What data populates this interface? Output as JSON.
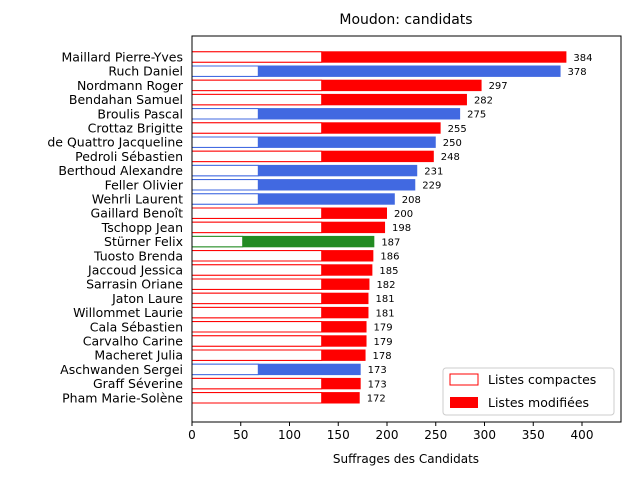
{
  "chart_data": {
    "type": "bar",
    "orientation": "horizontal",
    "title": "Moudon: candidats",
    "xlabel": "Suffrages des Candidats",
    "ylabel": "",
    "xlim": [
      0,
      440
    ],
    "xticks": [
      0,
      50,
      100,
      150,
      200,
      250,
      300,
      350,
      400
    ],
    "grid": false,
    "legend": {
      "placement": "lower-right",
      "entries": [
        {
          "label": "Listes compactes",
          "style": "outlined"
        },
        {
          "label": "Listes modifiées",
          "style": "filled"
        }
      ]
    },
    "colors": {
      "red": "#ff0000",
      "blue": "#4169e1",
      "green": "#228b22"
    },
    "candidates": [
      {
        "name": "Maillard Pierre-Yves",
        "total": 384,
        "compact": 133,
        "color": "red"
      },
      {
        "name": "Ruch Daniel",
        "total": 378,
        "compact": 68,
        "color": "blue"
      },
      {
        "name": "Nordmann Roger",
        "total": 297,
        "compact": 133,
        "color": "red"
      },
      {
        "name": "Bendahan Samuel",
        "total": 282,
        "compact": 133,
        "color": "red"
      },
      {
        "name": "Broulis Pascal",
        "total": 275,
        "compact": 68,
        "color": "blue"
      },
      {
        "name": "Crottaz Brigitte",
        "total": 255,
        "compact": 133,
        "color": "red"
      },
      {
        "name": "de Quattro Jacqueline",
        "total": 250,
        "compact": 68,
        "color": "blue"
      },
      {
        "name": "Pedroli Sébastien",
        "total": 248,
        "compact": 133,
        "color": "red"
      },
      {
        "name": "Berthoud Alexandre",
        "total": 231,
        "compact": 68,
        "color": "blue"
      },
      {
        "name": "Feller Olivier",
        "total": 229,
        "compact": 68,
        "color": "blue"
      },
      {
        "name": "Wehrli Laurent",
        "total": 208,
        "compact": 68,
        "color": "blue"
      },
      {
        "name": "Gaillard Benoît",
        "total": 200,
        "compact": 133,
        "color": "red"
      },
      {
        "name": "Tschopp Jean",
        "total": 198,
        "compact": 133,
        "color": "red"
      },
      {
        "name": "Stürner Felix",
        "total": 187,
        "compact": 52,
        "color": "green"
      },
      {
        "name": "Tuosto Brenda",
        "total": 186,
        "compact": 133,
        "color": "red"
      },
      {
        "name": "Jaccoud Jessica",
        "total": 185,
        "compact": 133,
        "color": "red"
      },
      {
        "name": "Sarrasin Oriane",
        "total": 182,
        "compact": 133,
        "color": "red"
      },
      {
        "name": "Jaton Laure",
        "total": 181,
        "compact": 133,
        "color": "red"
      },
      {
        "name": "Willommet Laurie",
        "total": 181,
        "compact": 133,
        "color": "red"
      },
      {
        "name": "Cala Sébastien",
        "total": 179,
        "compact": 133,
        "color": "red"
      },
      {
        "name": "Carvalho Carine",
        "total": 179,
        "compact": 133,
        "color": "red"
      },
      {
        "name": "Macheret Julia",
        "total": 178,
        "compact": 133,
        "color": "red"
      },
      {
        "name": "Aschwanden Sergei",
        "total": 173,
        "compact": 68,
        "color": "blue"
      },
      {
        "name": "Graff Séverine",
        "total": 173,
        "compact": 133,
        "color": "red"
      },
      {
        "name": "Pham Marie-Solène",
        "total": 172,
        "compact": 133,
        "color": "red"
      }
    ]
  }
}
